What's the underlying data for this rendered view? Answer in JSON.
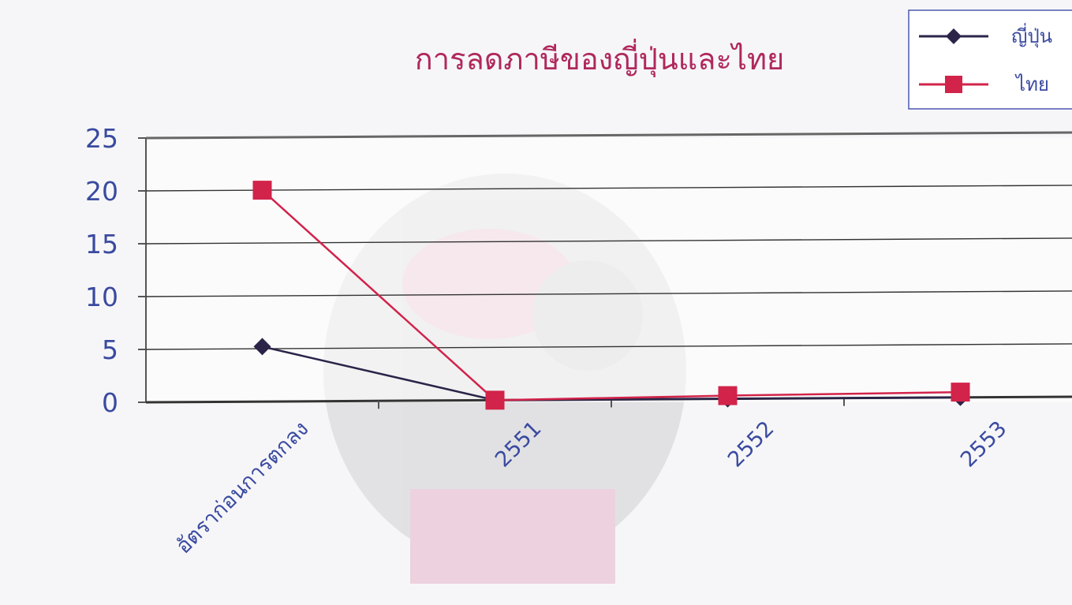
{
  "chart_data": {
    "type": "line",
    "title": "การลดภาษีของญี่ปุ่นและไทย",
    "categories": [
      "อัตราก่อนการตกลง",
      "2551",
      "2552",
      "2553"
    ],
    "series": [
      {
        "name": "ญี่ปุ่น",
        "values": [
          5.2,
          0,
          0,
          0
        ],
        "color": "#2b2448",
        "marker": "diamond"
      },
      {
        "name": "ไทย",
        "values": [
          20,
          0,
          0.3,
          0.5
        ],
        "color": "#d2234a",
        "marker": "square"
      }
    ],
    "ylim": [
      0,
      25
    ],
    "yticks": [
      "0",
      "5",
      "10",
      "15",
      "20",
      "25"
    ],
    "grid": true,
    "legend_position": "top-right"
  }
}
